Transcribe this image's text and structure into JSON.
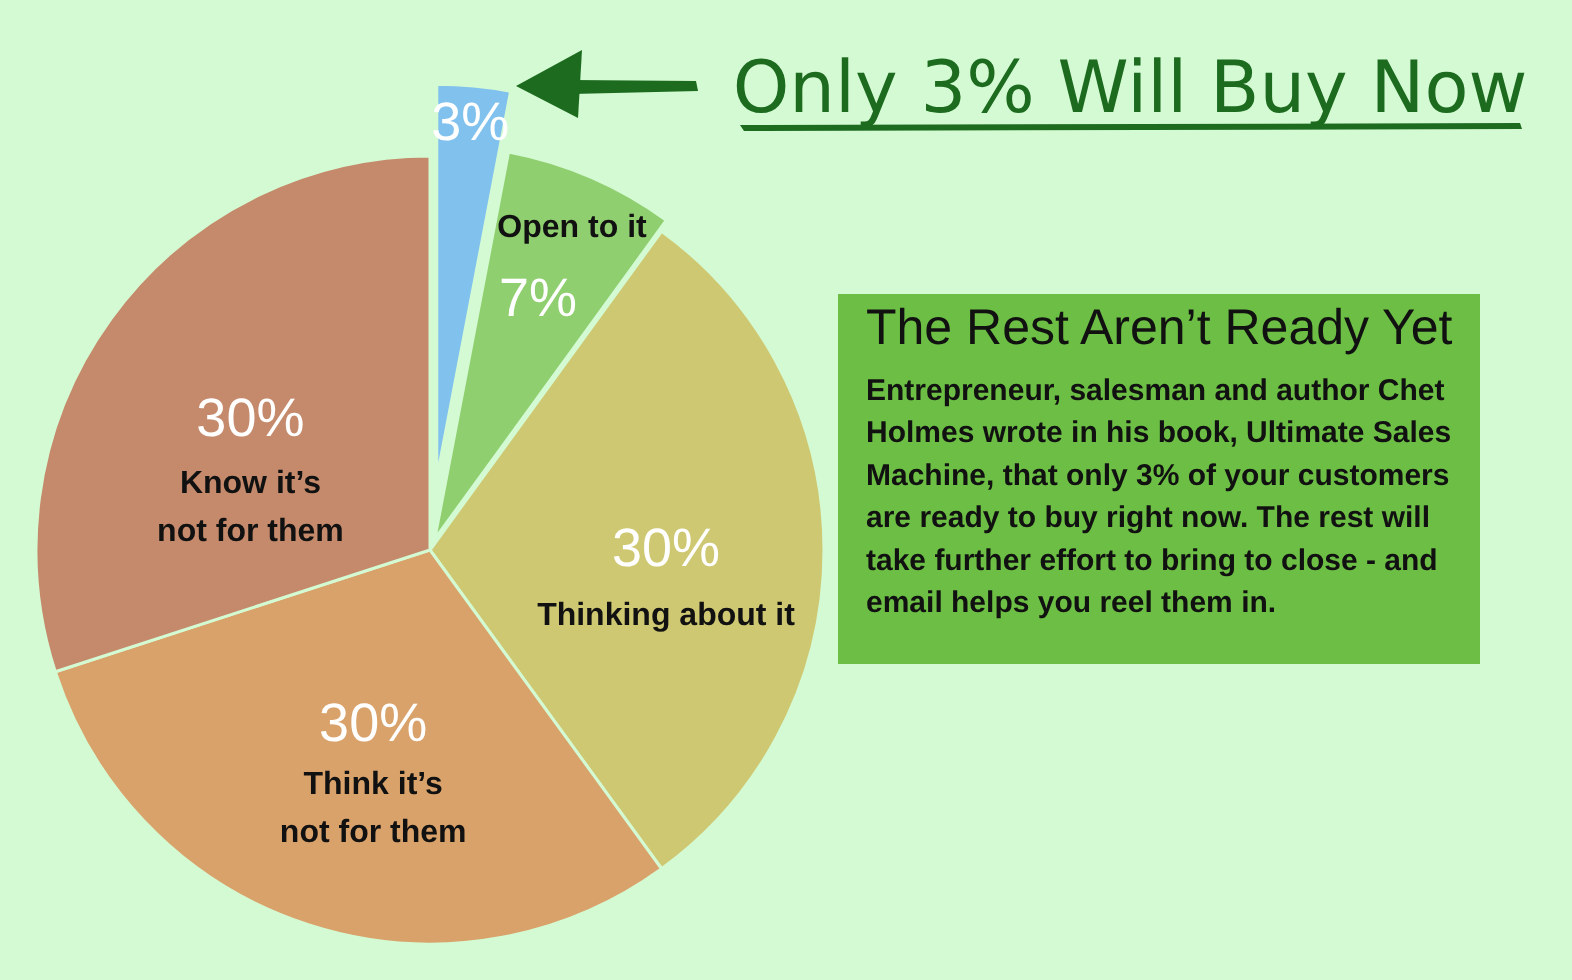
{
  "chart_data": {
    "type": "pie",
    "title": "Only 3% Will Buy Now",
    "categories": [
      null,
      "Open to it",
      "Thinking about it",
      "Think it’s not for them",
      "Know it’s not for them"
    ],
    "values": [
      3,
      7,
      30,
      30,
      30
    ],
    "value_labels": [
      "3%",
      "7%",
      "30%",
      "30%",
      "30%"
    ],
    "colors": [
      "#80c1ee",
      "#8fcf6f",
      "#cfc872",
      "#d9a26a",
      "#c48a6b"
    ],
    "annotations": [
      "The Rest Aren’t Ready Yet",
      "Entrepreneur, salesman and author Chet Holmes wrote in his book, Ultimate Sales Machine, that only 3% of your customers are ready to buy right now.  The rest will take further effort to bring to close - and email helps you reel them in."
    ]
  }
}
